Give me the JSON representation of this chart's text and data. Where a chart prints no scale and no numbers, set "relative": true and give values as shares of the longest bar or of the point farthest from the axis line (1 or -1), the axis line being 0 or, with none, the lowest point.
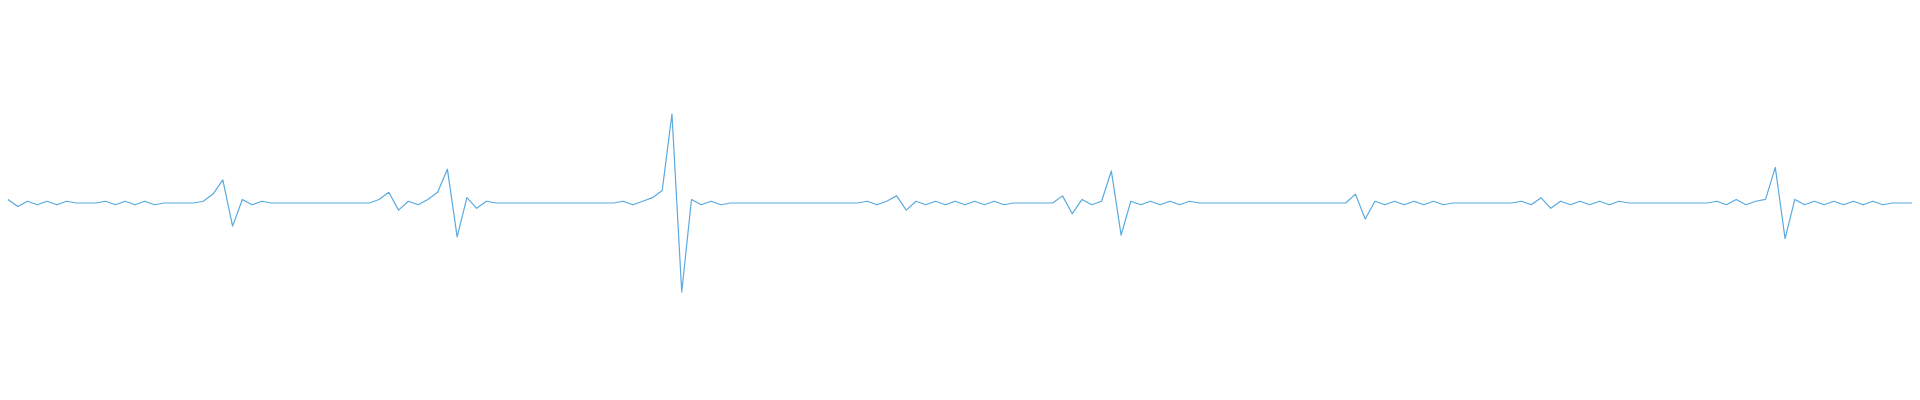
{
  "chart_data": {
    "type": "line",
    "relative": true,
    "categories": [
      null,
      null,
      null,
      null,
      null,
      null,
      null,
      null,
      null,
      null,
      null,
      null,
      null,
      null,
      null,
      null,
      null,
      null,
      null,
      null,
      null,
      null,
      null,
      null,
      null,
      null,
      null,
      null,
      null,
      null,
      null,
      null,
      null,
      null,
      null,
      null,
      null,
      null,
      null,
      null,
      null,
      null,
      null,
      null,
      null,
      null,
      null,
      null,
      null,
      null,
      null,
      null,
      null,
      null,
      null,
      null,
      null,
      null,
      null,
      null,
      null,
      null,
      null,
      null,
      null,
      null,
      null,
      null,
      null,
      null,
      null,
      null,
      null,
      null,
      null,
      null,
      null,
      null,
      null,
      null,
      null,
      null,
      null,
      null,
      null,
      null,
      null,
      null,
      null,
      null,
      null,
      null,
      null,
      null,
      null,
      null,
      null,
      null,
      null,
      null,
      null,
      null,
      null,
      null,
      null,
      null,
      null,
      null,
      null,
      null,
      null,
      null,
      null,
      null,
      null,
      null,
      null,
      null,
      null,
      null,
      null,
      null,
      null,
      null,
      null,
      null,
      null,
      null,
      null,
      null,
      null,
      null,
      null,
      null,
      null,
      null,
      null,
      null,
      null,
      null,
      null,
      null,
      null,
      null,
      null,
      null,
      null,
      null,
      null,
      null,
      null,
      null,
      null,
      null,
      null,
      null,
      null,
      null,
      null,
      null,
      null,
      null,
      null,
      null,
      null,
      null,
      null,
      null,
      null,
      null,
      null,
      null,
      null,
      null,
      null,
      null,
      null,
      null,
      null,
      null,
      null,
      null,
      null,
      null,
      null,
      null,
      null,
      null,
      null,
      null,
      null,
      null,
      null,
      null,
      null,
      null
    ],
    "series": [
      {
        "color": "#5aaae0",
        "values": [
          0.52,
          0.48,
          0.51,
          0.49,
          0.51,
          0.49,
          0.51,
          0.5,
          0.5,
          0.5,
          0.51,
          0.49,
          0.51,
          0.49,
          0.51,
          0.49,
          0.5,
          0.5,
          0.5,
          0.5,
          0.51,
          0.55,
          0.63,
          0.37,
          0.52,
          0.49,
          0.51,
          0.5,
          0.5,
          0.5,
          0.5,
          0.5,
          0.5,
          0.5,
          0.5,
          0.5,
          0.5,
          0.5,
          0.52,
          0.56,
          0.46,
          0.51,
          0.49,
          0.52,
          0.56,
          0.69,
          0.31,
          0.53,
          0.47,
          0.51,
          0.5,
          0.5,
          0.5,
          0.5,
          0.5,
          0.5,
          0.5,
          0.5,
          0.5,
          0.5,
          0.5,
          0.5,
          0.5,
          0.51,
          0.49,
          0.51,
          0.53,
          0.57,
          1,
          0,
          0.52,
          0.49,
          0.51,
          0.49,
          0.5,
          0.5,
          0.5,
          0.5,
          0.5,
          0.5,
          0.5,
          0.5,
          0.5,
          0.5,
          0.5,
          0.5,
          0.5,
          0.5,
          0.51,
          0.49,
          0.51,
          0.54,
          0.46,
          0.51,
          0.49,
          0.51,
          0.49,
          0.51,
          0.49,
          0.51,
          0.49,
          0.51,
          0.49,
          0.5,
          0.5,
          0.5,
          0.5,
          0.5,
          0.54,
          0.44,
          0.52,
          0.49,
          0.51,
          0.68,
          0.32,
          0.51,
          0.49,
          0.51,
          0.49,
          0.51,
          0.49,
          0.51,
          0.5,
          0.5,
          0.5,
          0.5,
          0.5,
          0.5,
          0.5,
          0.5,
          0.5,
          0.5,
          0.5,
          0.5,
          0.5,
          0.5,
          0.5,
          0.5,
          0.55,
          0.41,
          0.51,
          0.49,
          0.51,
          0.49,
          0.51,
          0.49,
          0.51,
          0.49,
          0.5,
          0.5,
          0.5,
          0.5,
          0.5,
          0.5,
          0.5,
          0.51,
          0.49,
          0.53,
          0.47,
          0.51,
          0.49,
          0.51,
          0.49,
          0.51,
          0.49,
          0.51,
          0.5,
          0.5,
          0.5,
          0.5,
          0.5,
          0.5,
          0.5,
          0.5,
          0.5,
          0.51,
          0.49,
          0.52,
          0.49,
          0.51,
          0.52,
          0.7,
          0.3,
          0.52,
          0.49,
          0.51,
          0.49,
          0.51,
          0.49,
          0.51,
          0.49,
          0.51,
          0.49,
          0.5,
          0.5,
          0.5
        ]
      }
    ]
  }
}
